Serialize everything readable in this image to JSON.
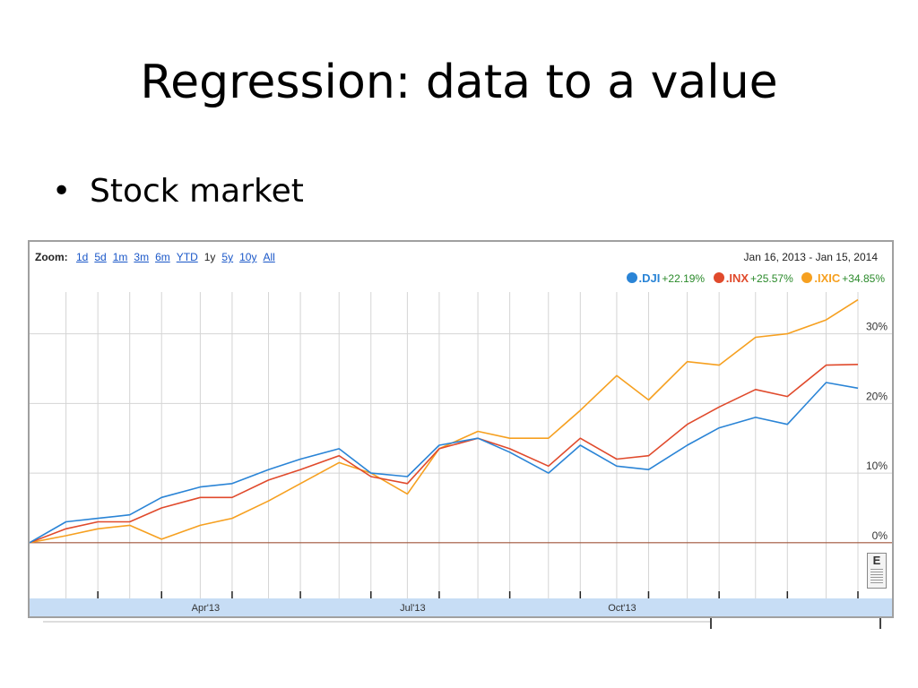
{
  "slide": {
    "title": "Regression: data to a value",
    "bullet": "Stock market"
  },
  "chart_widget": {
    "zoom_label": "Zoom:",
    "zoom_options": [
      "1d",
      "5d",
      "1m",
      "3m",
      "6m",
      "YTD",
      "1y",
      "5y",
      "10y",
      "All"
    ],
    "active_zoom": "1y",
    "date_range": "Jan 16, 2013  -  Jan 15, 2014",
    "flag_label": "E"
  },
  "colors": {
    "dji": "#2a84d6",
    "inx": "#e04a2c",
    "ixic": "#f6a020",
    "change_positive": "#2a8a2a",
    "grid": "#d4d4d4",
    "zero_line": "#a0553a",
    "axis_band": "#c7ddf5"
  },
  "chart_data": {
    "type": "line",
    "title": "",
    "xlabel": "",
    "ylabel": "",
    "x_tick_labels": [
      "Apr'13",
      "Jul'13",
      "Oct'13"
    ],
    "y_tick_labels": [
      "30%",
      "20%",
      "10%",
      "0%"
    ],
    "y_ticks": [
      30,
      20,
      10,
      0
    ],
    "ylim": [
      -8,
      36
    ],
    "grid": true,
    "legend_position": "top-right",
    "x": [
      "2013-01-16",
      "2013-02-01",
      "2013-02-15",
      "2013-03-01",
      "2013-03-15",
      "2013-04-01",
      "2013-04-15",
      "2013-05-01",
      "2013-05-15",
      "2013-06-01",
      "2013-06-15",
      "2013-07-01",
      "2013-07-15",
      "2013-08-01",
      "2013-08-15",
      "2013-09-01",
      "2013-09-15",
      "2013-10-01",
      "2013-10-15",
      "2013-11-01",
      "2013-11-15",
      "2013-12-01",
      "2013-12-15",
      "2014-01-01",
      "2014-01-15"
    ],
    "series": [
      {
        "name": ".DJI",
        "change": "+22.19%",
        "values": [
          0,
          3,
          3.5,
          4,
          6.5,
          8,
          8.5,
          10.5,
          12,
          13.5,
          10,
          9.5,
          14,
          15,
          13,
          10,
          14,
          11,
          10.5,
          14,
          16.5,
          18,
          17,
          23,
          22.2
        ]
      },
      {
        "name": ".INX",
        "change": "+25.57%",
        "values": [
          0,
          2,
          3,
          3,
          5,
          6.5,
          6.5,
          9,
          10.5,
          12.5,
          9.5,
          8.5,
          13.5,
          15,
          13.5,
          11,
          15,
          12,
          12.5,
          17,
          19.5,
          22,
          21,
          25.5,
          25.6
        ]
      },
      {
        "name": ".IXIC",
        "change": "+34.85%",
        "values": [
          0,
          1,
          2,
          2.5,
          0.5,
          2.5,
          3.5,
          6,
          8.5,
          11.5,
          10,
          7,
          13.5,
          16,
          15,
          15,
          19,
          24,
          20.5,
          26,
          25.5,
          29.5,
          30,
          32,
          34.9
        ]
      }
    ]
  }
}
